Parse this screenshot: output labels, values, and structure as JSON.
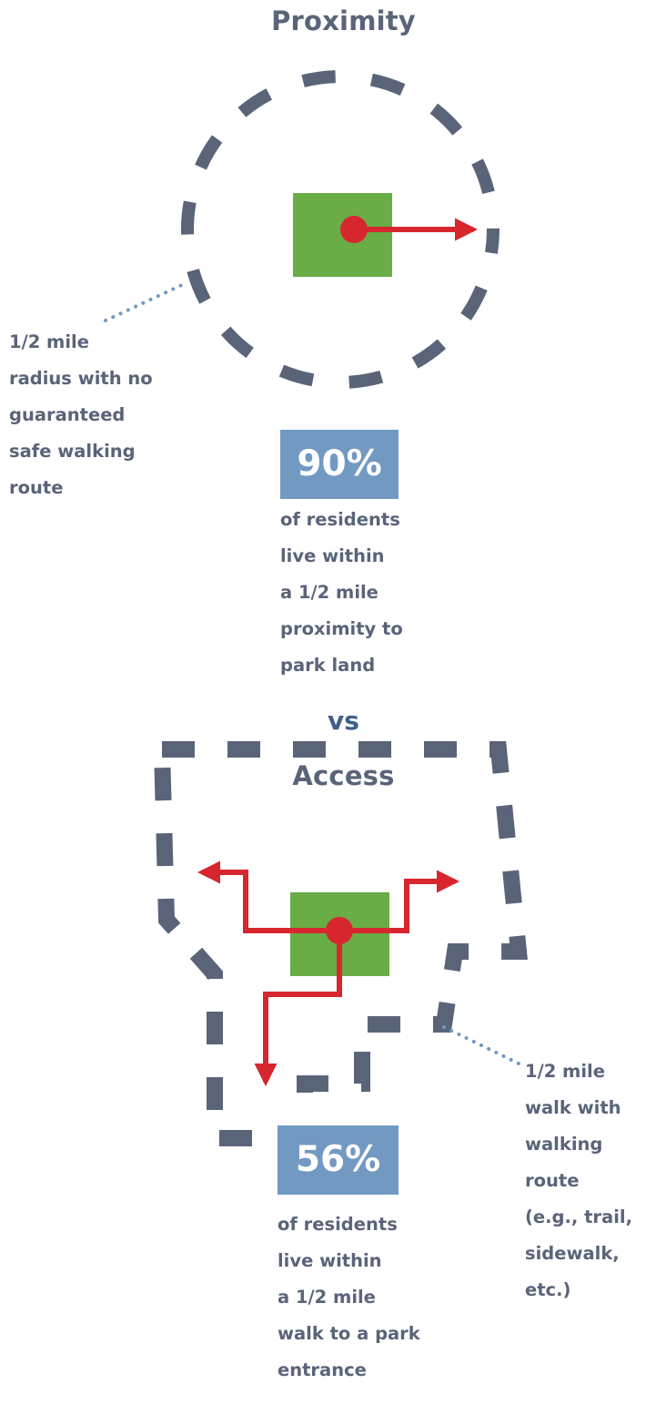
{
  "proximity": {
    "heading": "Proximity",
    "stat": "90%",
    "description": "of residents\nlive within\na 1/2 mile\nproximity to\npark land",
    "callout": "1/2 mile\nradius with no\nguaranteed\nsafe walking\nroute"
  },
  "separator": "vs",
  "access": {
    "heading": "Access",
    "stat": "56%",
    "description": "of residents\nlive within\na 1/2 mile\nwalk to a park\nentrance",
    "callout": "1/2 mile\nwalk with\nwalking\nroute\n(e.g., trail,\nsidewalk,\netc.)"
  },
  "colors": {
    "dash": "#5a6479",
    "park": "#6aac45",
    "route": "#d7262e",
    "stat_box": "#7299c2",
    "dotted_leader": "#7299c2",
    "vs": "#3f5f88"
  }
}
